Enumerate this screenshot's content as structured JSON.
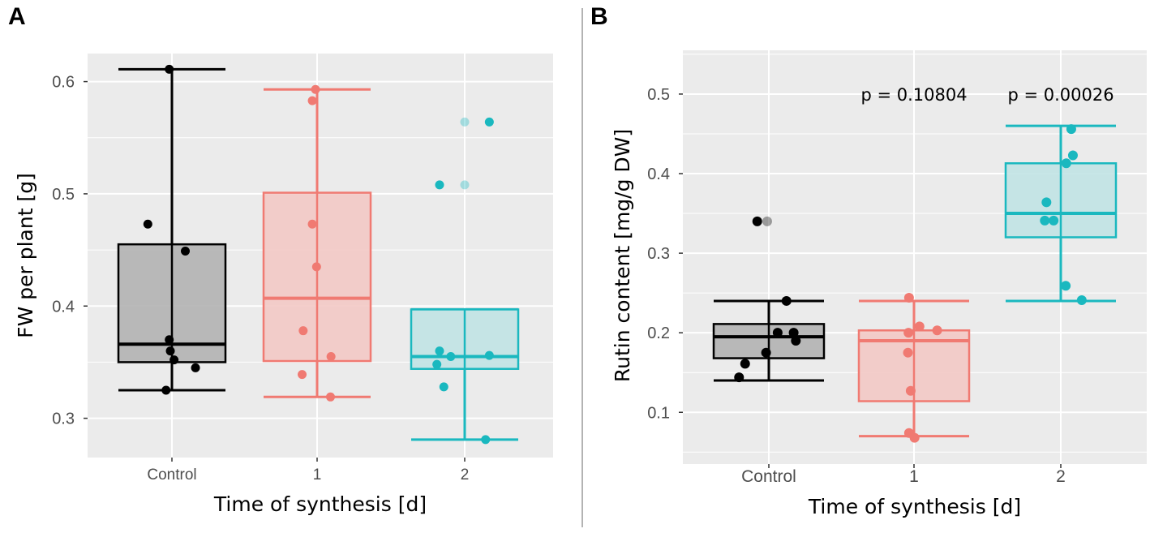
{
  "figure": {
    "colors": {
      "control": "#000000",
      "day1": "#f07a72",
      "day2": "#1ab8bf",
      "panel_bg": "#ebebeb",
      "gridline": "#ffffff",
      "separator": "#9a9a9a"
    }
  },
  "chart_data": [
    {
      "panel": "A",
      "type": "boxplot",
      "xlabel": "Time of synthesis [d]",
      "ylabel": "FW per plant [g]",
      "ylim": [
        0.265,
        0.625
      ],
      "yticks": [
        0.3,
        0.4,
        0.5,
        0.6
      ],
      "ytick_labels": [
        "0.3",
        "0.4",
        "0.5",
        "0.6"
      ],
      "categories": [
        "Control",
        "1",
        "2"
      ],
      "annotations": [],
      "groups": [
        {
          "category": "Control",
          "color": "#000000",
          "fill": "#b3b3b3",
          "box": {
            "q1": 0.35,
            "median": 0.366,
            "q3": 0.455,
            "whisker_low": 0.325,
            "whisker_high": 0.611
          },
          "points": [
            {
              "j": -0.05,
              "y": 0.611
            },
            {
              "j": -0.45,
              "y": 0.473
            },
            {
              "j": 0.25,
              "y": 0.449
            },
            {
              "j": -0.05,
              "y": 0.37
            },
            {
              "j": -0.03,
              "y": 0.36
            },
            {
              "j": 0.04,
              "y": 0.352
            },
            {
              "j": 0.44,
              "y": 0.345
            },
            {
              "j": -0.11,
              "y": 0.325
            }
          ]
        },
        {
          "category": "1",
          "color": "#f07a72",
          "fill": "#f3c9c5",
          "box": {
            "q1": 0.351,
            "median": 0.407,
            "q3": 0.501,
            "whisker_low": 0.319,
            "whisker_high": 0.593
          },
          "points": [
            {
              "j": -0.03,
              "y": 0.593
            },
            {
              "j": -0.09,
              "y": 0.583
            },
            {
              "j": -0.09,
              "y": 0.473
            },
            {
              "j": -0.01,
              "y": 0.435
            },
            {
              "j": -0.26,
              "y": 0.378
            },
            {
              "j": 0.26,
              "y": 0.355
            },
            {
              "j": -0.28,
              "y": 0.339
            },
            {
              "j": 0.25,
              "y": 0.319
            }
          ]
        },
        {
          "category": "2",
          "color": "#1ab8bf",
          "fill": "#c1e3e4",
          "box": {
            "q1": 0.344,
            "median": 0.355,
            "q3": 0.397,
            "whisker_low": 0.281,
            "whisker_high": 0.397
          },
          "points": [
            {
              "j": 0.46,
              "y": 0.564
            },
            {
              "j": -0.47,
              "y": 0.508
            },
            {
              "j": -0.47,
              "y": 0.36
            },
            {
              "j": -0.26,
              "y": 0.355
            },
            {
              "j": 0.46,
              "y": 0.356
            },
            {
              "j": -0.52,
              "y": 0.348
            },
            {
              "j": -0.39,
              "y": 0.328
            },
            {
              "j": 0.39,
              "y": 0.281
            }
          ],
          "outliers": [
            {
              "j": 0.0,
              "y": 0.564
            },
            {
              "j": 0.0,
              "y": 0.508
            }
          ]
        }
      ]
    },
    {
      "panel": "B",
      "type": "boxplot",
      "xlabel": "Time of synthesis [d]",
      "ylabel": "Rutin content [mg/g DW]",
      "ylim": [
        0.035,
        0.555
      ],
      "yticks": [
        0.1,
        0.2,
        0.3,
        0.4,
        0.5
      ],
      "ytick_labels": [
        "0.1",
        "0.2",
        "0.3",
        "0.4",
        "0.5"
      ],
      "categories": [
        "Control",
        "1",
        "2"
      ],
      "annotations": [
        {
          "category": "1",
          "text": "p = 0.10804"
        },
        {
          "category": "2",
          "text": "p = 0.00026"
        }
      ],
      "groups": [
        {
          "category": "Control",
          "color": "#000000",
          "fill": "#b3b3b3",
          "box": {
            "q1": 0.168,
            "median": 0.195,
            "q3": 0.211,
            "whisker_low": 0.14,
            "whisker_high": 0.24
          },
          "points": [
            {
              "j": -0.21,
              "y": 0.34
            },
            {
              "j": 0.32,
              "y": 0.24
            },
            {
              "j": 0.16,
              "y": 0.2
            },
            {
              "j": 0.45,
              "y": 0.2
            },
            {
              "j": 0.49,
              "y": 0.19
            },
            {
              "j": -0.05,
              "y": 0.175
            },
            {
              "j": -0.43,
              "y": 0.161
            },
            {
              "j": -0.54,
              "y": 0.144
            }
          ],
          "outliers": [
            {
              "j": -0.03,
              "y": 0.34
            }
          ]
        },
        {
          "category": "1",
          "color": "#f07a72",
          "fill": "#f3c9c5",
          "box": {
            "q1": 0.114,
            "median": 0.19,
            "q3": 0.203,
            "whisker_low": 0.07,
            "whisker_high": 0.24
          },
          "points": [
            {
              "j": -0.09,
              "y": 0.244
            },
            {
              "j": 0.1,
              "y": 0.208
            },
            {
              "j": 0.42,
              "y": 0.203
            },
            {
              "j": -0.1,
              "y": 0.2
            },
            {
              "j": -0.11,
              "y": 0.175
            },
            {
              "j": -0.06,
              "y": 0.127
            },
            {
              "j": -0.09,
              "y": 0.074
            },
            {
              "j": 0.01,
              "y": 0.068
            }
          ]
        },
        {
          "category": "2",
          "color": "#1ab8bf",
          "fill": "#c1e3e4",
          "box": {
            "q1": 0.32,
            "median": 0.35,
            "q3": 0.413,
            "whisker_low": 0.24,
            "whisker_high": 0.46
          },
          "points": [
            {
              "j": 0.19,
              "y": 0.456
            },
            {
              "j": 0.22,
              "y": 0.423
            },
            {
              "j": 0.1,
              "y": 0.413
            },
            {
              "j": -0.26,
              "y": 0.364
            },
            {
              "j": -0.29,
              "y": 0.341
            },
            {
              "j": -0.13,
              "y": 0.341
            },
            {
              "j": 0.09,
              "y": 0.259
            },
            {
              "j": 0.38,
              "y": 0.241
            }
          ]
        }
      ]
    }
  ]
}
